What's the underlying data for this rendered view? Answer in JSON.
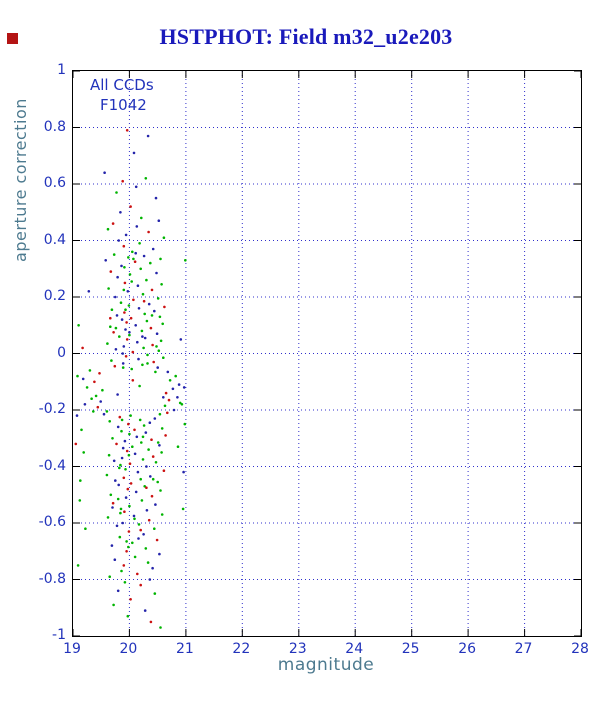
{
  "title": {
    "text": "HSTPHOT: Field m32_u2e203"
  },
  "colors": {
    "title_blue": "#1a1abb",
    "tick_label_blue": "#2233bb",
    "axis_label_slate": "#4d7a8f",
    "grid_blue": "#3030cc",
    "frame_black": "#000000",
    "marker_red": "#b41414",
    "background": "#ffffff"
  },
  "chart_data": {
    "type": "scatter",
    "title": "HSTPHOT: Field m32_u2e203",
    "xlabel": "magnitude",
    "ylabel": "aperture correction",
    "xlim": [
      19,
      28
    ],
    "ylim": [
      -1,
      1
    ],
    "grid": "dotted",
    "legend": "none",
    "annotations": [
      "All CCDs",
      "F1042"
    ],
    "x_ticks": [
      19,
      20,
      21,
      22,
      23,
      24,
      25,
      26,
      27,
      28
    ],
    "x_tick_labels": [
      "19",
      "20",
      "21",
      "22",
      "23",
      "24",
      "25",
      "26",
      "27",
      "28"
    ],
    "y_ticks": [
      1,
      0.8,
      0.6,
      0.4,
      0.2,
      0,
      -0.2,
      -0.4,
      -0.6,
      -0.8,
      -1
    ],
    "y_tick_labels": [
      "1",
      "0.8",
      "0.6",
      "0.4",
      "0.2",
      "0",
      "-0.2",
      "-0.4",
      "-0.6",
      "-0.8",
      "-1"
    ],
    "series_colors": [
      "#cc1111",
      "#00b400",
      "#2424aa"
    ],
    "points_format": "[magnitude, aperture_correction, color_index] where color_index 0=red 1=green 2=blue",
    "points": [
      [
        19.96,
        0.79,
        0
      ],
      [
        20.33,
        0.77,
        2
      ],
      [
        20.08,
        0.71,
        2
      ],
      [
        19.56,
        0.64,
        2
      ],
      [
        20.29,
        0.62,
        1
      ],
      [
        19.88,
        0.61,
        0
      ],
      [
        20.12,
        0.59,
        2
      ],
      [
        19.77,
        0.57,
        1
      ],
      [
        20.47,
        0.55,
        2
      ],
      [
        20.02,
        0.52,
        0
      ],
      [
        19.84,
        0.5,
        2
      ],
      [
        20.21,
        0.48,
        1
      ],
      [
        20.52,
        0.47,
        2
      ],
      [
        19.71,
        0.46,
        0
      ],
      [
        20.13,
        0.45,
        2
      ],
      [
        19.62,
        0.44,
        1
      ],
      [
        20.34,
        0.43,
        0
      ],
      [
        19.94,
        0.42,
        2
      ],
      [
        20.61,
        0.41,
        1
      ],
      [
        19.81,
        0.4,
        2
      ],
      [
        20.18,
        0.39,
        1
      ],
      [
        19.9,
        0.38,
        0
      ],
      [
        20.42,
        0.37,
        2
      ],
      [
        20.05,
        0.36,
        1
      ],
      [
        19.73,
        0.35,
        1
      ],
      [
        20.26,
        0.345,
        2
      ],
      [
        19.98,
        0.34,
        1
      ],
      [
        20.55,
        0.335,
        1
      ],
      [
        19.58,
        0.33,
        2
      ],
      [
        20.1,
        0.325,
        0
      ],
      [
        20.37,
        0.32,
        1
      ],
      [
        19.86,
        0.31,
        2
      ],
      [
        20.2,
        0.3,
        1
      ],
      [
        19.67,
        0.29,
        0
      ],
      [
        20.48,
        0.285,
        2
      ],
      [
        20.01,
        0.28,
        1
      ],
      [
        19.79,
        0.27,
        2
      ],
      [
        20.3,
        0.26,
        1
      ],
      [
        19.92,
        0.25,
        0
      ],
      [
        20.57,
        0.245,
        1
      ],
      [
        20.15,
        0.24,
        2
      ],
      [
        19.63,
        0.23,
        1
      ],
      [
        20.4,
        0.225,
        0
      ],
      [
        19.97,
        0.22,
        2
      ],
      [
        20.24,
        0.21,
        1
      ],
      [
        19.75,
        0.2,
        2
      ],
      [
        20.51,
        0.195,
        1
      ],
      [
        20.07,
        0.19,
        0
      ],
      [
        19.85,
        0.18,
        1
      ],
      [
        20.35,
        0.175,
        2
      ],
      [
        19.99,
        0.17,
        1
      ],
      [
        20.62,
        0.165,
        0
      ],
      [
        20.17,
        0.16,
        2
      ],
      [
        19.69,
        0.155,
        1
      ],
      [
        20.44,
        0.15,
        2
      ],
      [
        19.91,
        0.145,
        0
      ],
      [
        20.27,
        0.14,
        1
      ],
      [
        19.78,
        0.135,
        2
      ],
      [
        20.54,
        0.13,
        1
      ],
      [
        20.03,
        0.125,
        0
      ],
      [
        19.87,
        0.12,
        2
      ],
      [
        20.31,
        0.115,
        1
      ],
      [
        19.95,
        0.11,
        0
      ],
      [
        20.59,
        0.105,
        1
      ],
      [
        20.11,
        0.1,
        2
      ],
      [
        19.66,
        0.095,
        1
      ],
      [
        20.38,
        0.09,
        0
      ],
      [
        19.93,
        0.085,
        2
      ],
      [
        20.22,
        0.08,
        1
      ],
      [
        19.72,
        0.075,
        0
      ],
      [
        20.49,
        0.07,
        2
      ],
      [
        20.0,
        0.065,
        1
      ],
      [
        19.82,
        0.06,
        1
      ],
      [
        20.28,
        0.055,
        2
      ],
      [
        19.96,
        0.05,
        0
      ],
      [
        20.56,
        0.045,
        1
      ],
      [
        20.14,
        0.04,
        2
      ],
      [
        19.61,
        0.035,
        1
      ],
      [
        20.41,
        0.03,
        0
      ],
      [
        19.9,
        0.025,
        2
      ],
      [
        20.25,
        0.02,
        1
      ],
      [
        19.76,
        0.015,
        2
      ],
      [
        20.52,
        0.01,
        1
      ],
      [
        20.06,
        0.005,
        0
      ],
      [
        19.88,
        0.0,
        2
      ],
      [
        20.32,
        -0.005,
        1
      ],
      [
        19.94,
        -0.01,
        0
      ],
      [
        20.6,
        -0.015,
        1
      ],
      [
        20.16,
        -0.02,
        2
      ],
      [
        19.68,
        -0.025,
        1
      ],
      [
        20.43,
        -0.03,
        0
      ],
      [
        19.89,
        -0.035,
        2
      ],
      [
        20.23,
        -0.04,
        1
      ],
      [
        19.74,
        -0.045,
        0
      ],
      [
        20.5,
        -0.05,
        2
      ],
      [
        20.04,
        -0.055,
        1
      ],
      [
        19.3,
        -0.06,
        1
      ],
      [
        20.68,
        -0.065,
        2
      ],
      [
        19.47,
        -0.07,
        0
      ],
      [
        20.82,
        -0.08,
        1
      ],
      [
        19.18,
        -0.09,
        2
      ],
      [
        20.72,
        -0.095,
        1
      ],
      [
        19.38,
        -0.1,
        0
      ],
      [
        20.88,
        -0.11,
        2
      ],
      [
        19.25,
        -0.12,
        1
      ],
      [
        20.77,
        -0.125,
        2
      ],
      [
        19.52,
        -0.13,
        1
      ],
      [
        20.65,
        -0.14,
        0
      ],
      [
        19.41,
        -0.15,
        1
      ],
      [
        20.85,
        -0.155,
        2
      ],
      [
        19.33,
        -0.16,
        1
      ],
      [
        20.7,
        -0.165,
        0
      ],
      [
        19.49,
        -0.17,
        2
      ],
      [
        20.9,
        -0.175,
        1
      ],
      [
        19.21,
        -0.18,
        2
      ],
      [
        20.63,
        -0.185,
        1
      ],
      [
        19.44,
        -0.19,
        0
      ],
      [
        20.79,
        -0.2,
        2
      ],
      [
        19.36,
        -0.205,
        1
      ],
      [
        20.67,
        -0.21,
        0
      ],
      [
        19.55,
        -0.215,
        2
      ],
      [
        20.02,
        -0.22,
        1
      ],
      [
        19.83,
        -0.225,
        0
      ],
      [
        20.45,
        -0.23,
        2
      ],
      [
        20.19,
        -0.235,
        1
      ],
      [
        19.65,
        -0.24,
        1
      ],
      [
        20.36,
        -0.245,
        2
      ],
      [
        19.98,
        -0.25,
        0
      ],
      [
        20.26,
        -0.255,
        1
      ],
      [
        19.8,
        -0.26,
        2
      ],
      [
        20.58,
        -0.265,
        1
      ],
      [
        20.09,
        -0.27,
        0
      ],
      [
        19.86,
        -0.275,
        1
      ],
      [
        20.29,
        -0.28,
        2
      ],
      [
        20.0,
        -0.285,
        1
      ],
      [
        20.64,
        -0.29,
        0
      ],
      [
        20.13,
        -0.295,
        2
      ],
      [
        19.7,
        -0.3,
        1
      ],
      [
        20.39,
        -0.305,
        0
      ],
      [
        19.92,
        -0.31,
        2
      ],
      [
        20.21,
        -0.315,
        1
      ],
      [
        19.77,
        -0.32,
        0
      ],
      [
        20.53,
        -0.325,
        2
      ],
      [
        20.05,
        -0.33,
        1
      ],
      [
        19.89,
        -0.335,
        2
      ],
      [
        20.34,
        -0.34,
        1
      ],
      [
        19.96,
        -0.345,
        0
      ],
      [
        20.57,
        -0.35,
        1
      ],
      [
        20.1,
        -0.355,
        2
      ],
      [
        19.64,
        -0.36,
        1
      ],
      [
        20.42,
        -0.365,
        0
      ],
      [
        19.87,
        -0.37,
        2
      ],
      [
        20.24,
        -0.375,
        1
      ],
      [
        19.73,
        -0.38,
        2
      ],
      [
        20.47,
        -0.385,
        1
      ],
      [
        20.01,
        -0.39,
        0
      ],
      [
        19.84,
        -0.395,
        1
      ],
      [
        20.3,
        -0.4,
        2
      ],
      [
        19.93,
        -0.41,
        1
      ],
      [
        20.61,
        -0.415,
        0
      ],
      [
        20.15,
        -0.42,
        2
      ],
      [
        19.6,
        -0.43,
        1
      ],
      [
        20.37,
        -0.435,
        2
      ],
      [
        19.9,
        -0.44,
        0
      ],
      [
        20.2,
        -0.445,
        1
      ],
      [
        19.75,
        -0.45,
        2
      ],
      [
        20.5,
        -0.455,
        1
      ],
      [
        20.03,
        -0.46,
        0
      ],
      [
        19.81,
        -0.465,
        2
      ],
      [
        20.27,
        -0.47,
        1
      ],
      [
        19.97,
        -0.48,
        0
      ],
      [
        20.55,
        -0.485,
        1
      ],
      [
        20.12,
        -0.49,
        2
      ],
      [
        19.67,
        -0.5,
        1
      ],
      [
        20.4,
        -0.505,
        0
      ],
      [
        19.94,
        -0.51,
        2
      ],
      [
        20.22,
        -0.52,
        1
      ],
      [
        19.71,
        -0.53,
        0
      ],
      [
        20.46,
        -0.535,
        2
      ],
      [
        20.0,
        -0.54,
        1
      ],
      [
        19.85,
        -0.55,
        1
      ],
      [
        20.31,
        -0.555,
        2
      ],
      [
        19.91,
        -0.56,
        0
      ],
      [
        20.58,
        -0.57,
        1
      ],
      [
        20.08,
        -0.575,
        2
      ],
      [
        19.62,
        -0.58,
        1
      ],
      [
        20.35,
        -0.59,
        0
      ],
      [
        19.88,
        -0.6,
        2
      ],
      [
        20.17,
        -0.605,
        1
      ],
      [
        19.78,
        -0.61,
        2
      ],
      [
        20.44,
        -0.62,
        1
      ],
      [
        19.99,
        -0.63,
        0
      ],
      [
        20.25,
        -0.64,
        2
      ],
      [
        19.83,
        -0.65,
        1
      ],
      [
        20.49,
        -0.66,
        0
      ],
      [
        20.05,
        -0.67,
        1
      ],
      [
        19.69,
        -0.68,
        2
      ],
      [
        20.29,
        -0.69,
        1
      ],
      [
        19.95,
        -0.7,
        0
      ],
      [
        20.53,
        -0.71,
        2
      ],
      [
        20.1,
        -0.72,
        1
      ],
      [
        19.74,
        -0.73,
        2
      ],
      [
        20.33,
        -0.74,
        1
      ],
      [
        19.9,
        -0.75,
        0
      ],
      [
        20.41,
        -0.76,
        2
      ],
      [
        19.86,
        -0.77,
        1
      ],
      [
        20.14,
        -0.78,
        0
      ],
      [
        19.65,
        -0.79,
        1
      ],
      [
        20.36,
        -0.8,
        2
      ],
      [
        19.92,
        -0.81,
        1
      ],
      [
        20.2,
        -0.82,
        0
      ],
      [
        19.8,
        -0.84,
        2
      ],
      [
        20.45,
        -0.85,
        1
      ],
      [
        20.02,
        -0.87,
        0
      ],
      [
        19.72,
        -0.89,
        1
      ],
      [
        20.28,
        -0.91,
        2
      ],
      [
        19.97,
        -0.93,
        1
      ],
      [
        20.38,
        -0.95,
        0
      ],
      [
        20.55,
        -0.97,
        1
      ],
      [
        19.6,
        -0.205,
        1
      ],
      [
        20.86,
        -0.33,
        1
      ],
      [
        19.15,
        -0.27,
        1
      ],
      [
        20.93,
        -0.18,
        1
      ],
      [
        19.08,
        -0.08,
        1
      ],
      [
        20.96,
        -0.42,
        2
      ],
      [
        19.12,
        -0.52,
        1
      ],
      [
        20.91,
        0.05,
        2
      ],
      [
        19.05,
        -0.32,
        0
      ],
      [
        19.1,
        0.1,
        1
      ],
      [
        19.07,
        -0.22,
        2
      ],
      [
        19.13,
        -0.45,
        1
      ],
      [
        19.17,
        0.02,
        0
      ],
      [
        19.22,
        -0.62,
        1
      ],
      [
        19.28,
        0.22,
        2
      ],
      [
        19.09,
        -0.75,
        1
      ],
      [
        19.19,
        -0.35,
        1
      ],
      [
        20.98,
        -0.25,
        1
      ],
      [
        20.97,
        -0.12,
        2
      ],
      [
        20.95,
        -0.55,
        1
      ],
      [
        20.99,
        0.33,
        1
      ],
      [
        20.07,
        0.335,
        1
      ],
      [
        19.89,
        -0.05,
        1
      ],
      [
        20.18,
        -0.115,
        1
      ],
      [
        20.46,
        -0.065,
        1
      ],
      [
        19.79,
        -0.145,
        2
      ],
      [
        20.23,
        0.06,
        2
      ],
      [
        19.99,
        -0.36,
        1
      ],
      [
        20.4,
        0.135,
        1
      ],
      [
        19.84,
        -0.565,
        1
      ],
      [
        20.16,
        -0.655,
        2
      ],
      [
        19.93,
        0.155,
        1
      ],
      [
        20.3,
        -0.475,
        0
      ],
      [
        20.09,
        -0.585,
        1
      ],
      [
        19.76,
        0.09,
        1
      ],
      [
        20.51,
        -0.315,
        1
      ],
      [
        19.98,
        -0.685,
        1
      ],
      [
        20.26,
        0.185,
        0
      ],
      [
        19.82,
        -0.405,
        1
      ],
      [
        20.6,
        -0.155,
        2
      ],
      [
        20.04,
        0.255,
        1
      ],
      [
        19.7,
        -0.545,
        2
      ],
      [
        20.32,
        -0.035,
        1
      ],
      [
        19.91,
        0.305,
        1
      ],
      [
        20.2,
        -0.625,
        0
      ],
      [
        20.48,
        0.025,
        1
      ],
      [
        19.87,
        -0.235,
        1
      ],
      [
        20.11,
        0.355,
        2
      ],
      [
        19.95,
        -0.665,
        1
      ],
      [
        20.42,
        -0.445,
        1
      ],
      [
        19.66,
        0.125,
        0
      ],
      [
        20.24,
        -0.295,
        1
      ],
      [
        20.0,
        0.075,
        2
      ],
      [
        19.8,
        -0.515,
        1
      ],
      [
        20.54,
        -0.215,
        1
      ],
      [
        20.06,
        -0.095,
        0
      ],
      [
        19.9,
        0.225,
        1
      ]
    ]
  }
}
